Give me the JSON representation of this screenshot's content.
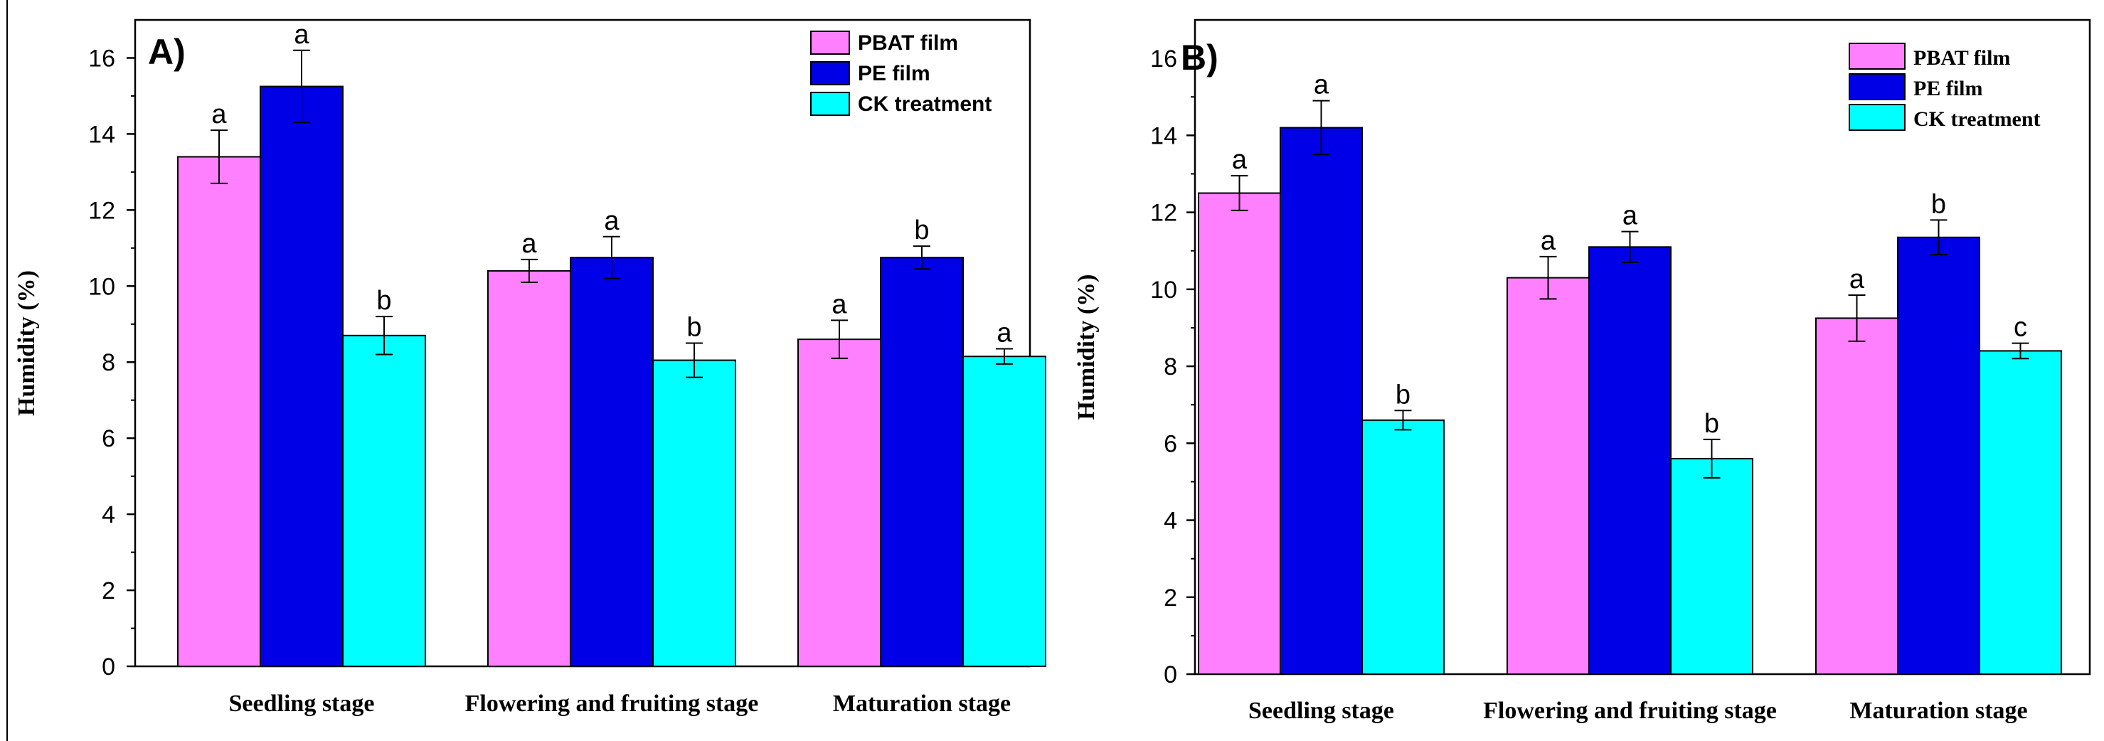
{
  "chart_data": [
    {
      "type": "bar",
      "panel_label": "A)",
      "title": "",
      "xlabel": "",
      "ylabel": "Humidity (%)",
      "ylim": [
        0,
        17
      ],
      "yticks": [
        "0",
        "2",
        "4",
        "6",
        "8",
        "10",
        "12",
        "14",
        "16"
      ],
      "categories": [
        "Seedling stage",
        "Flowering and fruiting stage",
        "Maturation stage"
      ],
      "legend_position": "top-right",
      "series": [
        {
          "name": "PBAT film",
          "color": "#ff80ff",
          "values": [
            13.4,
            10.4,
            8.6
          ],
          "errors": [
            0.7,
            0.3,
            0.5
          ],
          "sig": [
            "a",
            "a",
            "a"
          ]
        },
        {
          "name": "PE film",
          "color": "#0000e6",
          "values": [
            15.25,
            10.75,
            10.75
          ],
          "errors": [
            0.95,
            0.55,
            0.3
          ],
          "sig": [
            "a",
            "a",
            "b"
          ]
        },
        {
          "name": "CK treatment",
          "color": "#00ffff",
          "values": [
            8.7,
            8.05,
            8.15
          ],
          "errors": [
            0.5,
            0.45,
            0.2
          ],
          "sig": [
            "b",
            "b",
            "a"
          ]
        }
      ]
    },
    {
      "type": "bar",
      "panel_label": "B)",
      "title": "",
      "xlabel": "",
      "ylabel": "Humidity (%)",
      "ylim": [
        0,
        17
      ],
      "yticks": [
        "0",
        "2",
        "4",
        "6",
        "8",
        "10",
        "12",
        "14",
        "16"
      ],
      "categories": [
        "Seedling stage",
        "Flowering and fruiting stage",
        "Maturation stage"
      ],
      "legend_position": "top-right",
      "series": [
        {
          "name": "PBAT film",
          "color": "#ff80ff",
          "values": [
            12.5,
            10.3,
            9.25
          ],
          "errors": [
            0.45,
            0.55,
            0.6
          ],
          "sig": [
            "a",
            "a",
            "a"
          ]
        },
        {
          "name": "PE film",
          "color": "#0000e6",
          "values": [
            14.2,
            11.1,
            11.35
          ],
          "errors": [
            0.7,
            0.4,
            0.45
          ],
          "sig": [
            "a",
            "a",
            "b"
          ]
        },
        {
          "name": "CK treatment",
          "color": "#00ffff",
          "values": [
            6.6,
            5.6,
            8.4
          ],
          "errors": [
            0.25,
            0.5,
            0.2
          ],
          "sig": [
            "b",
            "b",
            "c"
          ]
        }
      ]
    }
  ]
}
